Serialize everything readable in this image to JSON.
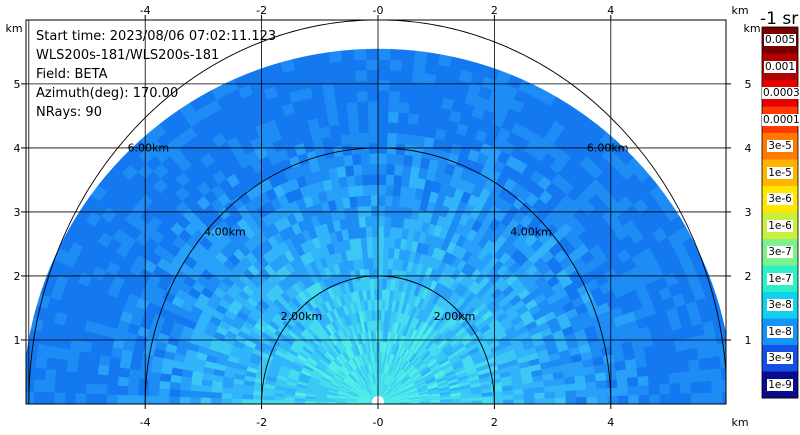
{
  "info": {
    "start_time": "Start time: 2023/08/06 07:02:11.123",
    "station": "WLS200s-181/WLS200s-181",
    "field": "Field: BETA",
    "azimuth": "Azimuth(deg): 170.00",
    "nrays": "NRays: 90"
  },
  "axes": {
    "x_ticks": [
      "-4",
      "-2",
      "-0",
      "2",
      "4"
    ],
    "y_ticks": [
      "5",
      "4",
      "3",
      "2",
      "1"
    ],
    "unit": "km"
  },
  "range_rings": [
    "2.00km",
    "4.00km",
    "6.00km"
  ],
  "colorbar": {
    "title": "-1 sr",
    "labels": [
      "0.005",
      "0.001",
      "0.0003",
      "0.0001",
      "3e-5",
      "1e-5",
      "3e-6",
      "1e-6",
      "3e-7",
      "1e-7",
      "3e-8",
      "1e-8",
      "3e-9",
      "1e-9"
    ],
    "colors": [
      "#7a0000",
      "#b00000",
      "#e60000",
      "#ff3a00",
      "#ff7a00",
      "#ffb400",
      "#ffe600",
      "#c8f03c",
      "#7ef08c",
      "#2ef0c8",
      "#10d2f0",
      "#1494f5",
      "#1450e6",
      "#0a0a8c"
    ]
  },
  "field_colors": [
    "#1478f0",
    "#1e8cf5",
    "#28a0fa",
    "#32b4fa",
    "#3cc8f5",
    "#46dcf0",
    "#50f0e6"
  ]
}
